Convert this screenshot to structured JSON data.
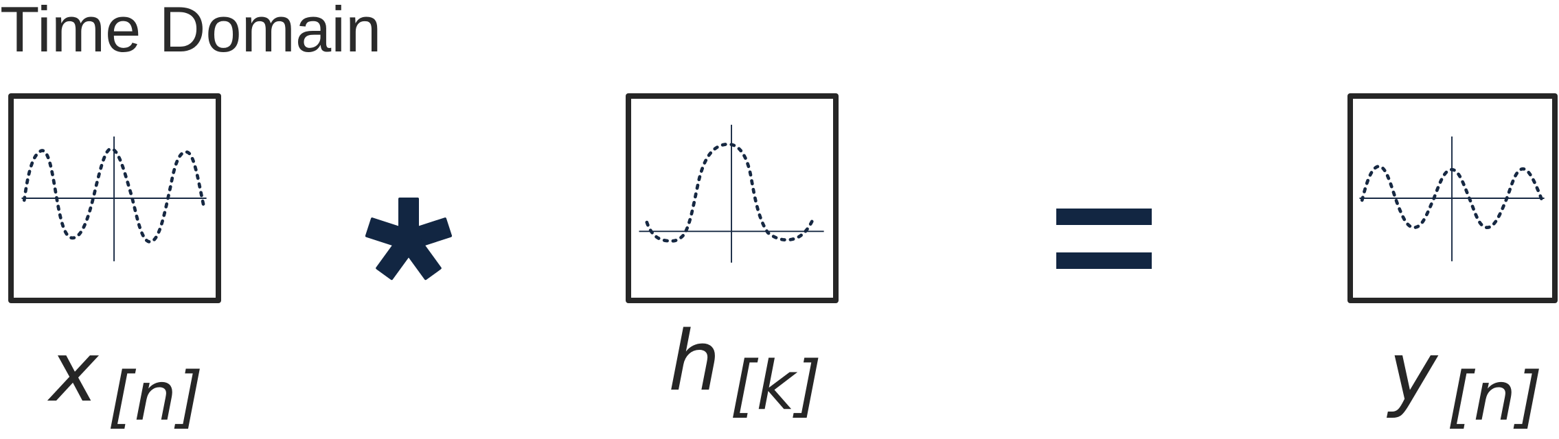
{
  "title": "Time Domain",
  "terms": [
    {
      "symbol": "x",
      "subscript": "[n]",
      "signal": "sinusoid"
    },
    {
      "symbol": "h",
      "subscript": "[k]",
      "signal": "sinc-like pulse"
    },
    {
      "symbol": "y",
      "subscript": "[n]",
      "signal": "sinusoid"
    }
  ],
  "operators": [
    {
      "symbol": "*",
      "meaning": "convolution",
      "icon": "asterisk-icon"
    },
    {
      "symbol": "=",
      "meaning": "equals",
      "icon": "equals-icon"
    }
  ],
  "colors": {
    "text": "#262626",
    "frame": "#262626",
    "signal": "#162842",
    "operator": "#122642",
    "background": "#ffffff"
  }
}
